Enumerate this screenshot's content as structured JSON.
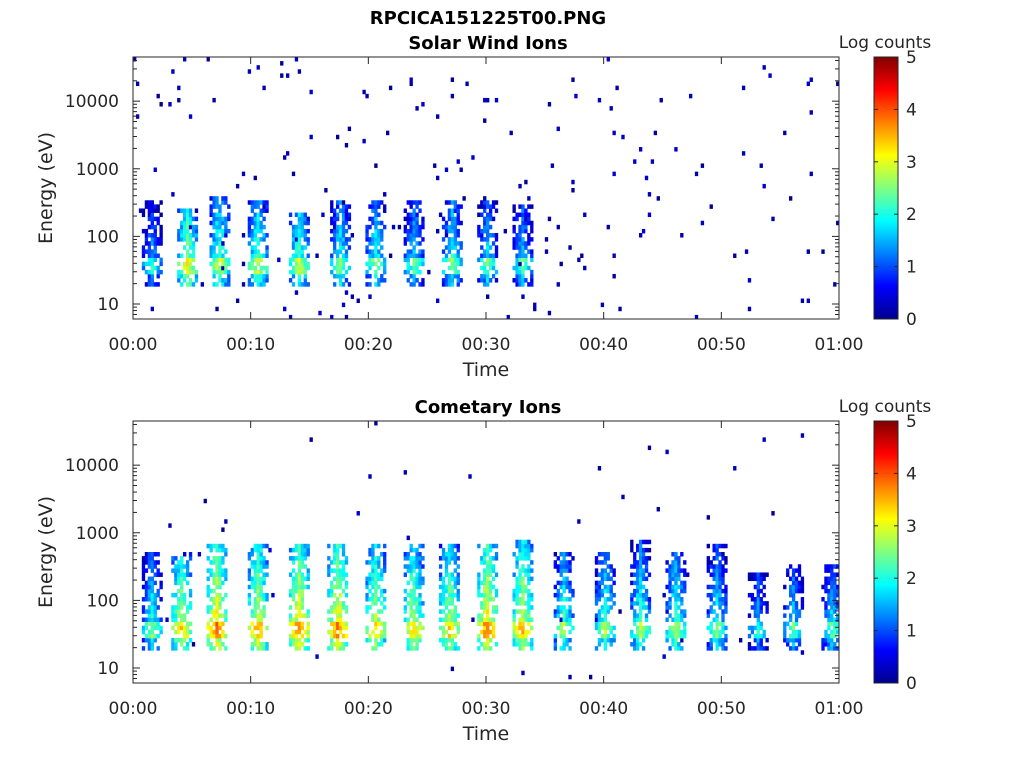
{
  "figure_title": "RPCICA151225T00.PNG",
  "colormap": [
    "#00008f",
    "#0000ff",
    "#0080ff",
    "#00ffff",
    "#80ff80",
    "#ffff00",
    "#ff8000",
    "#ff0000",
    "#800000"
  ],
  "chart_data": [
    {
      "type": "heatmap",
      "title": "Solar Wind Ions",
      "xlabel": "Time",
      "ylabel": "Energy (eV)",
      "x_ticks": [
        "00:00",
        "00:10",
        "00:20",
        "00:30",
        "00:40",
        "00:50",
        "01:00"
      ],
      "xlim_minutes": [
        0,
        60
      ],
      "y_scale": "log",
      "y_ticks": [
        10,
        100,
        1000,
        10000
      ],
      "ylim": [
        6,
        45000
      ],
      "colorbar": {
        "label": "Log counts",
        "ticks": [
          0,
          1,
          2,
          3,
          4,
          5
        ],
        "range": [
          0,
          5
        ]
      },
      "bursts": [
        {
          "t": 1.5,
          "e_max": 300,
          "peak": 1.5
        },
        {
          "t": 4.5,
          "e_max": 250,
          "peak": 2.6
        },
        {
          "t": 7.2,
          "e_max": 350,
          "peak": 2.3
        },
        {
          "t": 10.5,
          "e_max": 300,
          "peak": 2.3
        },
        {
          "t": 14.0,
          "e_max": 200,
          "peak": 2.3
        },
        {
          "t": 17.5,
          "e_max": 300,
          "peak": 2.0
        },
        {
          "t": 20.5,
          "e_max": 300,
          "peak": 2.0
        },
        {
          "t": 23.8,
          "e_max": 300,
          "peak": 1.8
        },
        {
          "t": 27.0,
          "e_max": 300,
          "peak": 2.0
        },
        {
          "t": 30.0,
          "e_max": 300,
          "peak": 1.8
        },
        {
          "t": 33.0,
          "e_max": 280,
          "peak": 1.7
        }
      ],
      "background_density": 1.0
    },
    {
      "type": "heatmap",
      "title": "Cometary Ions",
      "xlabel": "Time",
      "ylabel": "Energy (eV)",
      "x_ticks": [
        "00:00",
        "00:10",
        "00:20",
        "00:30",
        "00:40",
        "00:50",
        "01:00"
      ],
      "xlim_minutes": [
        0,
        60
      ],
      "y_scale": "log",
      "y_ticks": [
        10,
        100,
        1000,
        10000
      ],
      "ylim": [
        6,
        45000
      ],
      "colorbar": {
        "label": "Log counts",
        "ticks": [
          0,
          1,
          2,
          3,
          4,
          5
        ],
        "range": [
          0,
          5
        ]
      },
      "bursts": [
        {
          "t": 1.5,
          "e_max": 500,
          "peak": 2.0
        },
        {
          "t": 4.0,
          "e_max": 500,
          "peak": 2.8
        },
        {
          "t": 7.0,
          "e_max": 600,
          "peak": 3.2
        },
        {
          "t": 10.5,
          "e_max": 600,
          "peak": 3.0
        },
        {
          "t": 14.0,
          "e_max": 600,
          "peak": 3.2
        },
        {
          "t": 17.3,
          "e_max": 600,
          "peak": 3.2
        },
        {
          "t": 20.5,
          "e_max": 600,
          "peak": 2.8
        },
        {
          "t": 23.7,
          "e_max": 600,
          "peak": 2.8
        },
        {
          "t": 26.8,
          "e_max": 600,
          "peak": 2.8
        },
        {
          "t": 30.0,
          "e_max": 600,
          "peak": 3.2
        },
        {
          "t": 33.0,
          "e_max": 700,
          "peak": 3.0
        },
        {
          "t": 36.5,
          "e_max": 500,
          "peak": 2.2
        },
        {
          "t": 40.0,
          "e_max": 500,
          "peak": 2.2
        },
        {
          "t": 43.0,
          "e_max": 700,
          "peak": 2.2
        },
        {
          "t": 46.0,
          "e_max": 500,
          "peak": 2.2
        },
        {
          "t": 49.5,
          "e_max": 600,
          "peak": 2.0
        },
        {
          "t": 53.0,
          "e_max": 250,
          "peak": 1.5
        },
        {
          "t": 56.0,
          "e_max": 300,
          "peak": 1.8
        },
        {
          "t": 59.3,
          "e_max": 300,
          "peak": 1.8
        }
      ],
      "background_density": 0.25
    }
  ]
}
